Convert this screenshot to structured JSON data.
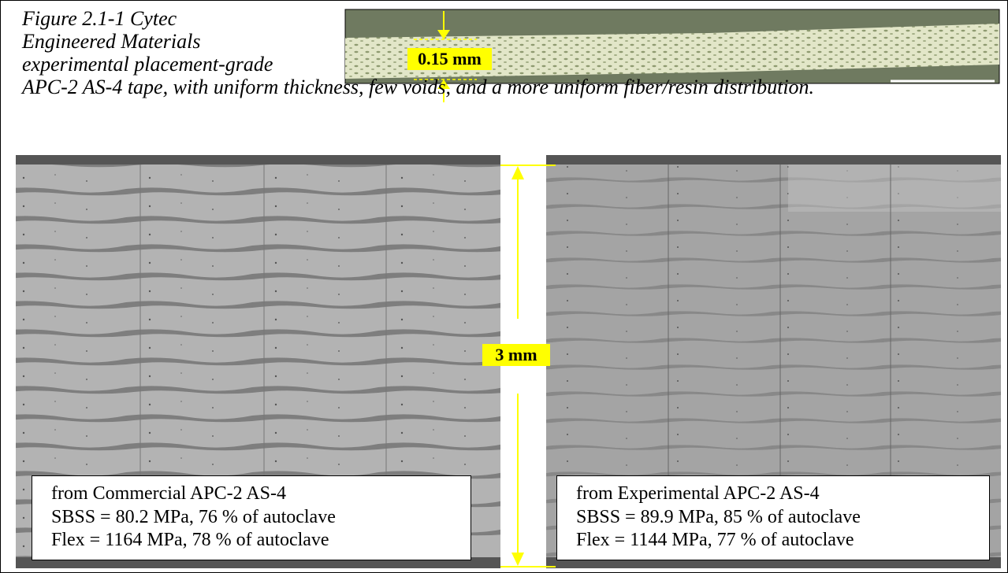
{
  "caption_lines": [
    "Figure 2.1-1 Cytec",
    "Engineered Materials",
    "experimental placement-grade",
    "APC-2 AS-4 tape, with uniform thickness, few voids, and a more uniform fiber/resin distribution."
  ],
  "tape_label": "0.15 mm",
  "scale_label": "3 mm",
  "panels": [
    {
      "lines": [
        "from Commercial APC-2 AS-4",
        "SBSS = 80.2 MPa, 76 % of autoclave",
        "Flex = 1164 MPa, 78 % of autoclave"
      ]
    },
    {
      "lines": [
        "from Experimental APC-2 AS-4",
        "SBSS = 89.9 MPa, 85 % of autoclave",
        "Flex = 1144 MPa, 77 % of autoclave"
      ]
    }
  ]
}
